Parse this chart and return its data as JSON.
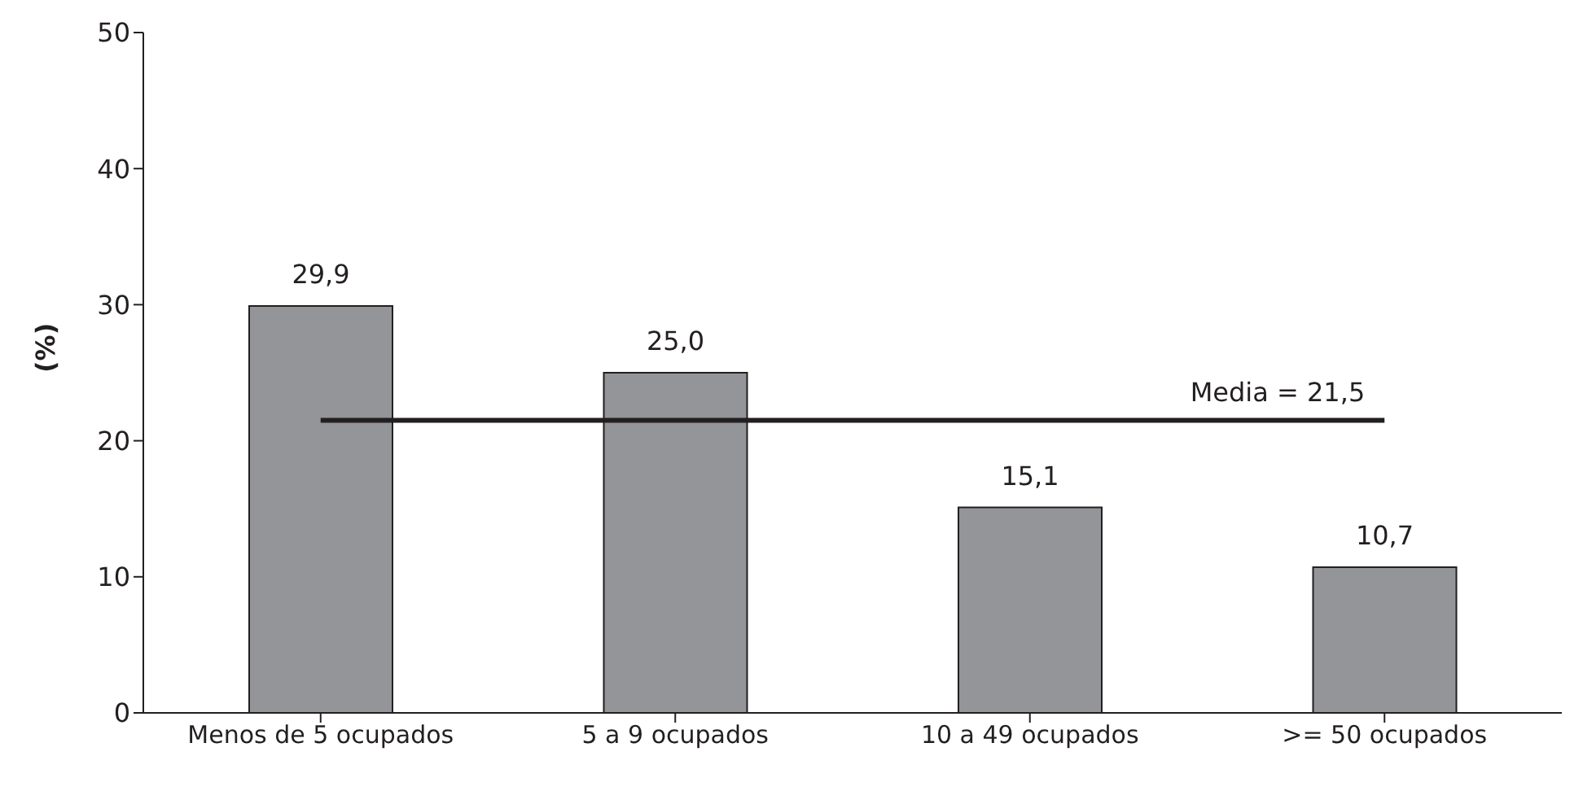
{
  "chart_data": {
    "type": "bar",
    "ylabel": "(%)",
    "categories": [
      "Menos de 5 ocupados",
      "5 a 9 ocupados",
      "10 a 49 ocupados",
      ">= 50 ocupados"
    ],
    "values": [
      29.9,
      25.0,
      15.1,
      10.7
    ],
    "color": "#939598",
    "value_labels": [
      "29,9",
      "25,0",
      "15,1",
      "10,7"
    ],
    "ylim": [
      0,
      50
    ],
    "yticks": [
      0,
      10,
      20,
      30,
      40,
      50
    ],
    "grid": false,
    "legend": false,
    "ref_lines": [
      {
        "axis": "y",
        "value": 21.5,
        "label": "Media = 21,5",
        "color": "#231f20",
        "line_style": "solid"
      }
    ]
  }
}
